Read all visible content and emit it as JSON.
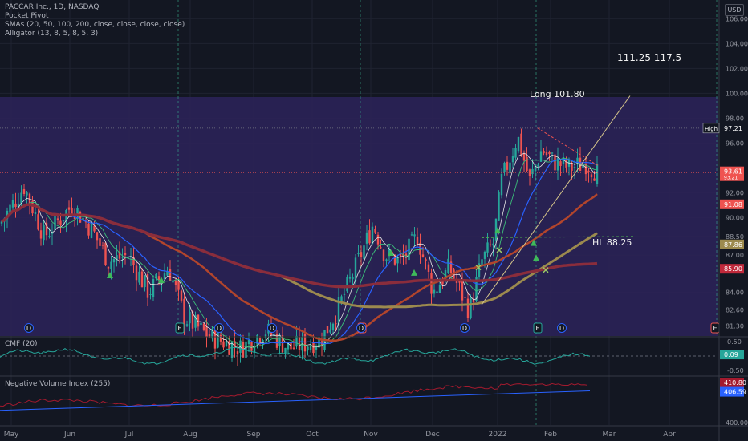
{
  "header": {
    "symbol_line": "PACCAR Inc., 1D, NASDAQ",
    "indicators": [
      "Pocket Pivot",
      "SMAs (20, 50, 100, 200, close, close, close, close)",
      "Alligator (13, 8, 5, 8, 5, 3)"
    ],
    "currency_button": "USD"
  },
  "colors": {
    "background": "#131722",
    "zone": "#2b2258",
    "candle_up": "#26a69a",
    "candle_down": "#ef5350",
    "sma20": "#2962ff",
    "sma50": "#b2452c",
    "sma100": "#9c8a4e",
    "sma200": "#8a2d3c",
    "cmf": "#26a69a",
    "nvi": "#a31a2e",
    "nvi_ma": "#2962ff"
  },
  "annotations": {
    "targets": "111.25    117.5",
    "long_label": "Long 101.80",
    "hl_label": "HL 88.25"
  },
  "price_pane": {
    "y_ticks": [
      "106.00",
      "104.00",
      "102.00",
      "100.00",
      "98.00",
      "96.00",
      "92.00",
      "90.00",
      "88.50",
      "87.00",
      "84.00",
      "82.60",
      "81.30"
    ],
    "badges": [
      {
        "text": "High",
        "value": "97.21",
        "color": "#131722",
        "border": "#d1d4dc"
      },
      {
        "text": "93.61",
        "sub": "93.21",
        "color": "#ef5350"
      },
      {
        "text": "91.08",
        "color": "#ef5350"
      },
      {
        "text": "87.86",
        "color": "#9c8a4e"
      },
      {
        "text": "85.90",
        "color": "#c0293b"
      }
    ]
  },
  "cmf_pane": {
    "label": "CMF (20)",
    "y_ticks": [
      "0.50",
      "-0.50"
    ],
    "value_badge": "0.09"
  },
  "nvi_pane": {
    "label": "Negative Volume Index (255)",
    "y_ticks": [
      "400.00"
    ],
    "value_badges": [
      "410.80",
      "406.59"
    ]
  },
  "x_axis": {
    "labels": [
      "May",
      "Jun",
      "Jul",
      "Aug",
      "Sep",
      "Oct",
      "Nov",
      "Dec",
      "2022",
      "Feb",
      "Mar",
      "Apr"
    ]
  },
  "events": {
    "earnings": [
      "E",
      "E",
      "E",
      "E",
      "E"
    ],
    "dividends": [
      "D",
      "D",
      "D",
      "D",
      "D",
      "D",
      "D"
    ]
  },
  "chart_data": {
    "type": "candlestick",
    "title": "PACCAR Inc., 1D, NASDAQ",
    "ylim": [
      80.5,
      107.5
    ],
    "monthly_close": [
      {
        "month": "May",
        "close": 91.5
      },
      {
        "month": "Jun",
        "close": 90.2
      },
      {
        "month": "Jul",
        "close": 84.8
      },
      {
        "month": "Aug",
        "close": 82.0
      },
      {
        "month": "Sep",
        "close": 80.5
      },
      {
        "month": "Oct",
        "close": 84.0
      },
      {
        "month": "Nov",
        "close": 86.0
      },
      {
        "month": "Dec",
        "close": 86.5
      },
      {
        "month": "Jan",
        "close": 94.5
      },
      {
        "month": "Feb",
        "close": 93.6
      }
    ],
    "levels": {
      "high": 97.21,
      "last": 93.61,
      "sma50": 91.08,
      "sma100": 87.86,
      "sma200": 85.9
    }
  }
}
